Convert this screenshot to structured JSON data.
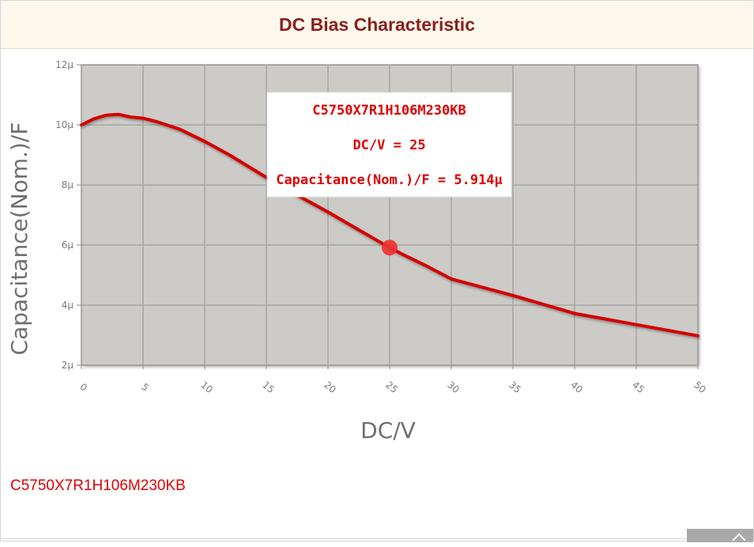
{
  "header": {
    "title": "DC Bias Characteristic"
  },
  "footer": {
    "series_label": "C5750X7R1H106M230KB"
  },
  "chart_data": {
    "type": "line",
    "xlabel": "DC/V",
    "ylabel": "Capacitance(Nom.)/F",
    "xlim": [
      0,
      50
    ],
    "ylim": [
      2,
      12
    ],
    "x_ticks": [
      0,
      5,
      10,
      15,
      20,
      25,
      30,
      35,
      40,
      45,
      50
    ],
    "x_tick_labels": [
      "0",
      "5",
      "10",
      "15",
      "20",
      "25",
      "30",
      "35",
      "40",
      "45",
      "50"
    ],
    "y_ticks": [
      2,
      4,
      6,
      8,
      10,
      12
    ],
    "y_tick_labels": [
      "2µ",
      "4µ",
      "6µ",
      "8µ",
      "10µ",
      "12µ"
    ],
    "grid": true,
    "series": [
      {
        "name": "C5750X7R1H106M230KB",
        "color": "#d40000",
        "x": [
          0,
          1,
          2,
          3,
          4,
          5,
          6,
          8,
          10,
          12,
          14,
          16,
          18,
          20,
          22,
          24,
          25,
          26,
          28,
          30,
          35,
          40,
          45,
          50
        ],
        "y": [
          10.0,
          10.2,
          10.32,
          10.35,
          10.26,
          10.22,
          10.12,
          9.85,
          9.45,
          9.0,
          8.5,
          8.0,
          7.55,
          7.1,
          6.62,
          6.15,
          5.914,
          5.7,
          5.3,
          4.87,
          4.32,
          3.72,
          3.35,
          2.98
        ]
      }
    ],
    "highlight": {
      "x": 25,
      "y": 5.914
    },
    "tooltip": {
      "part": "C5750X7R1H106M230KB",
      "x_text": "DC/V = 25",
      "y_text": "Capacitance(Nom.)/F = 5.914µ"
    },
    "colors": {
      "plot_background": "#cdcbc7",
      "grid": "#a8a6a2",
      "line": "#d40000",
      "marker": "#f03030"
    }
  }
}
